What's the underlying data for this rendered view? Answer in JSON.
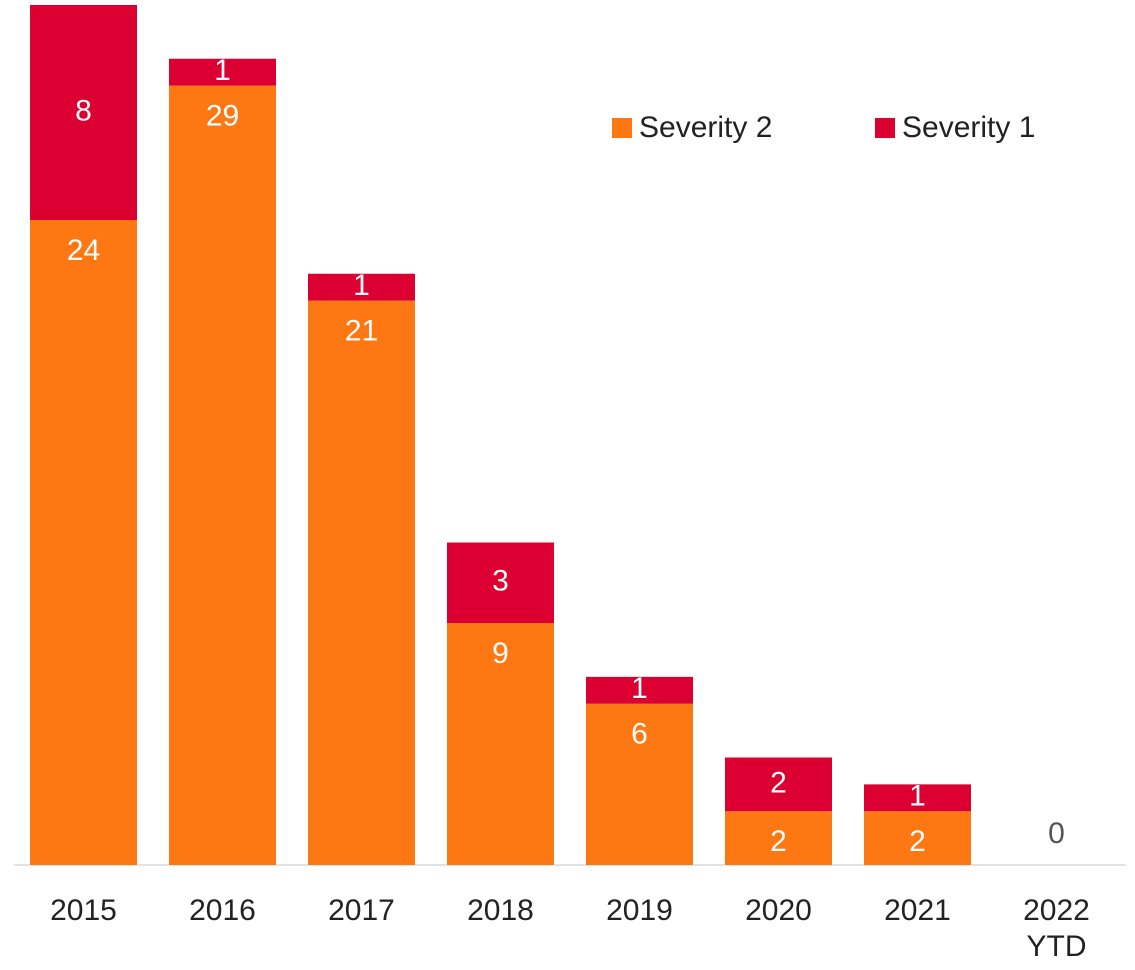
{
  "chart_data": {
    "type": "stacked_bar",
    "categories": [
      "2015",
      "2016",
      "2017",
      "2018",
      "2019",
      "2020",
      "2021",
      "2022 YTD"
    ],
    "series": [
      {
        "name": "Severity 2",
        "color": "#fd7713",
        "values": [
          24,
          29,
          21,
          9,
          6,
          2,
          2,
          0
        ]
      },
      {
        "name": "Severity 1",
        "color": "#dc0032",
        "values": [
          8,
          1,
          1,
          3,
          1,
          2,
          1,
          null
        ]
      }
    ],
    "ylim": [
      0,
      32
    ]
  }
}
